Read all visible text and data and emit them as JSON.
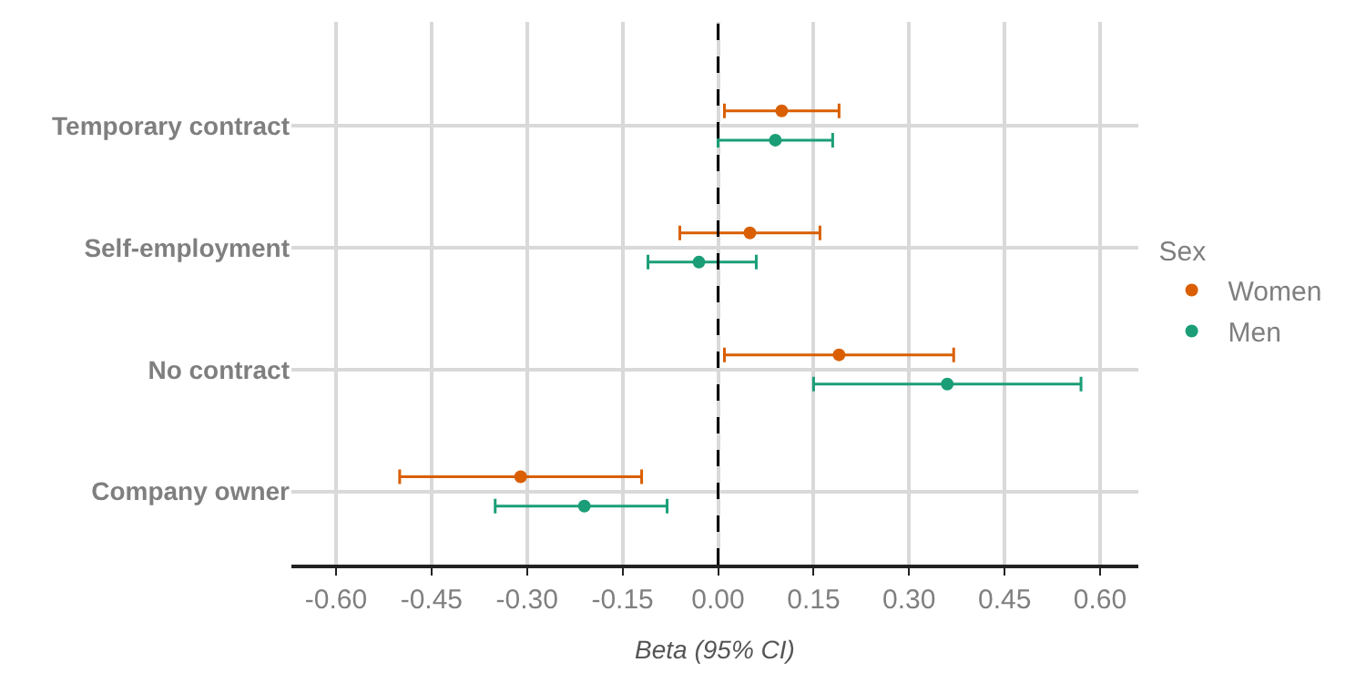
{
  "chart_data": {
    "type": "scatter",
    "orientation": "horizontal",
    "xlabel": "Beta (95% CI)",
    "legend_title": "Sex",
    "categories": [
      "Temporary contract",
      "Self-employment",
      "No contract",
      "Company owner"
    ],
    "series": [
      {
        "name": "Women",
        "color": "#d95f02",
        "values": [
          0.1,
          0.05,
          0.19,
          -0.31
        ],
        "errors": [
          [
            0.01,
            0.19
          ],
          [
            -0.06,
            0.16
          ],
          [
            0.01,
            0.37
          ],
          [
            -0.5,
            -0.12
          ]
        ]
      },
      {
        "name": "Men",
        "color": "#1b9e77",
        "values": [
          0.09,
          -0.03,
          0.36,
          -0.21
        ],
        "errors": [
          [
            0.0,
            0.18
          ],
          [
            -0.11,
            0.06
          ],
          [
            0.15,
            0.57
          ],
          [
            -0.35,
            -0.08
          ]
        ]
      }
    ],
    "xlim": [
      -0.67,
      0.66
    ],
    "xticks": [
      {
        "value": -0.6,
        "label": "-0.60"
      },
      {
        "value": -0.45,
        "label": "-0.45"
      },
      {
        "value": -0.3,
        "label": "-0.30"
      },
      {
        "value": -0.15,
        "label": "-0.15"
      },
      {
        "value": 0,
        "label": "0.00"
      },
      {
        "value": 0.15,
        "label": "0.15"
      },
      {
        "value": 0.3,
        "label": "0.30"
      },
      {
        "value": 0.45,
        "label": "0.45"
      },
      {
        "value": 0.6,
        "label": "0.60"
      }
    ],
    "ref_lines": [
      {
        "axis": "x",
        "value": 0,
        "label": null,
        "color": "#000000",
        "line_style": "dashed"
      }
    ],
    "grid": true,
    "legend": "right",
    "marker": "circle"
  }
}
